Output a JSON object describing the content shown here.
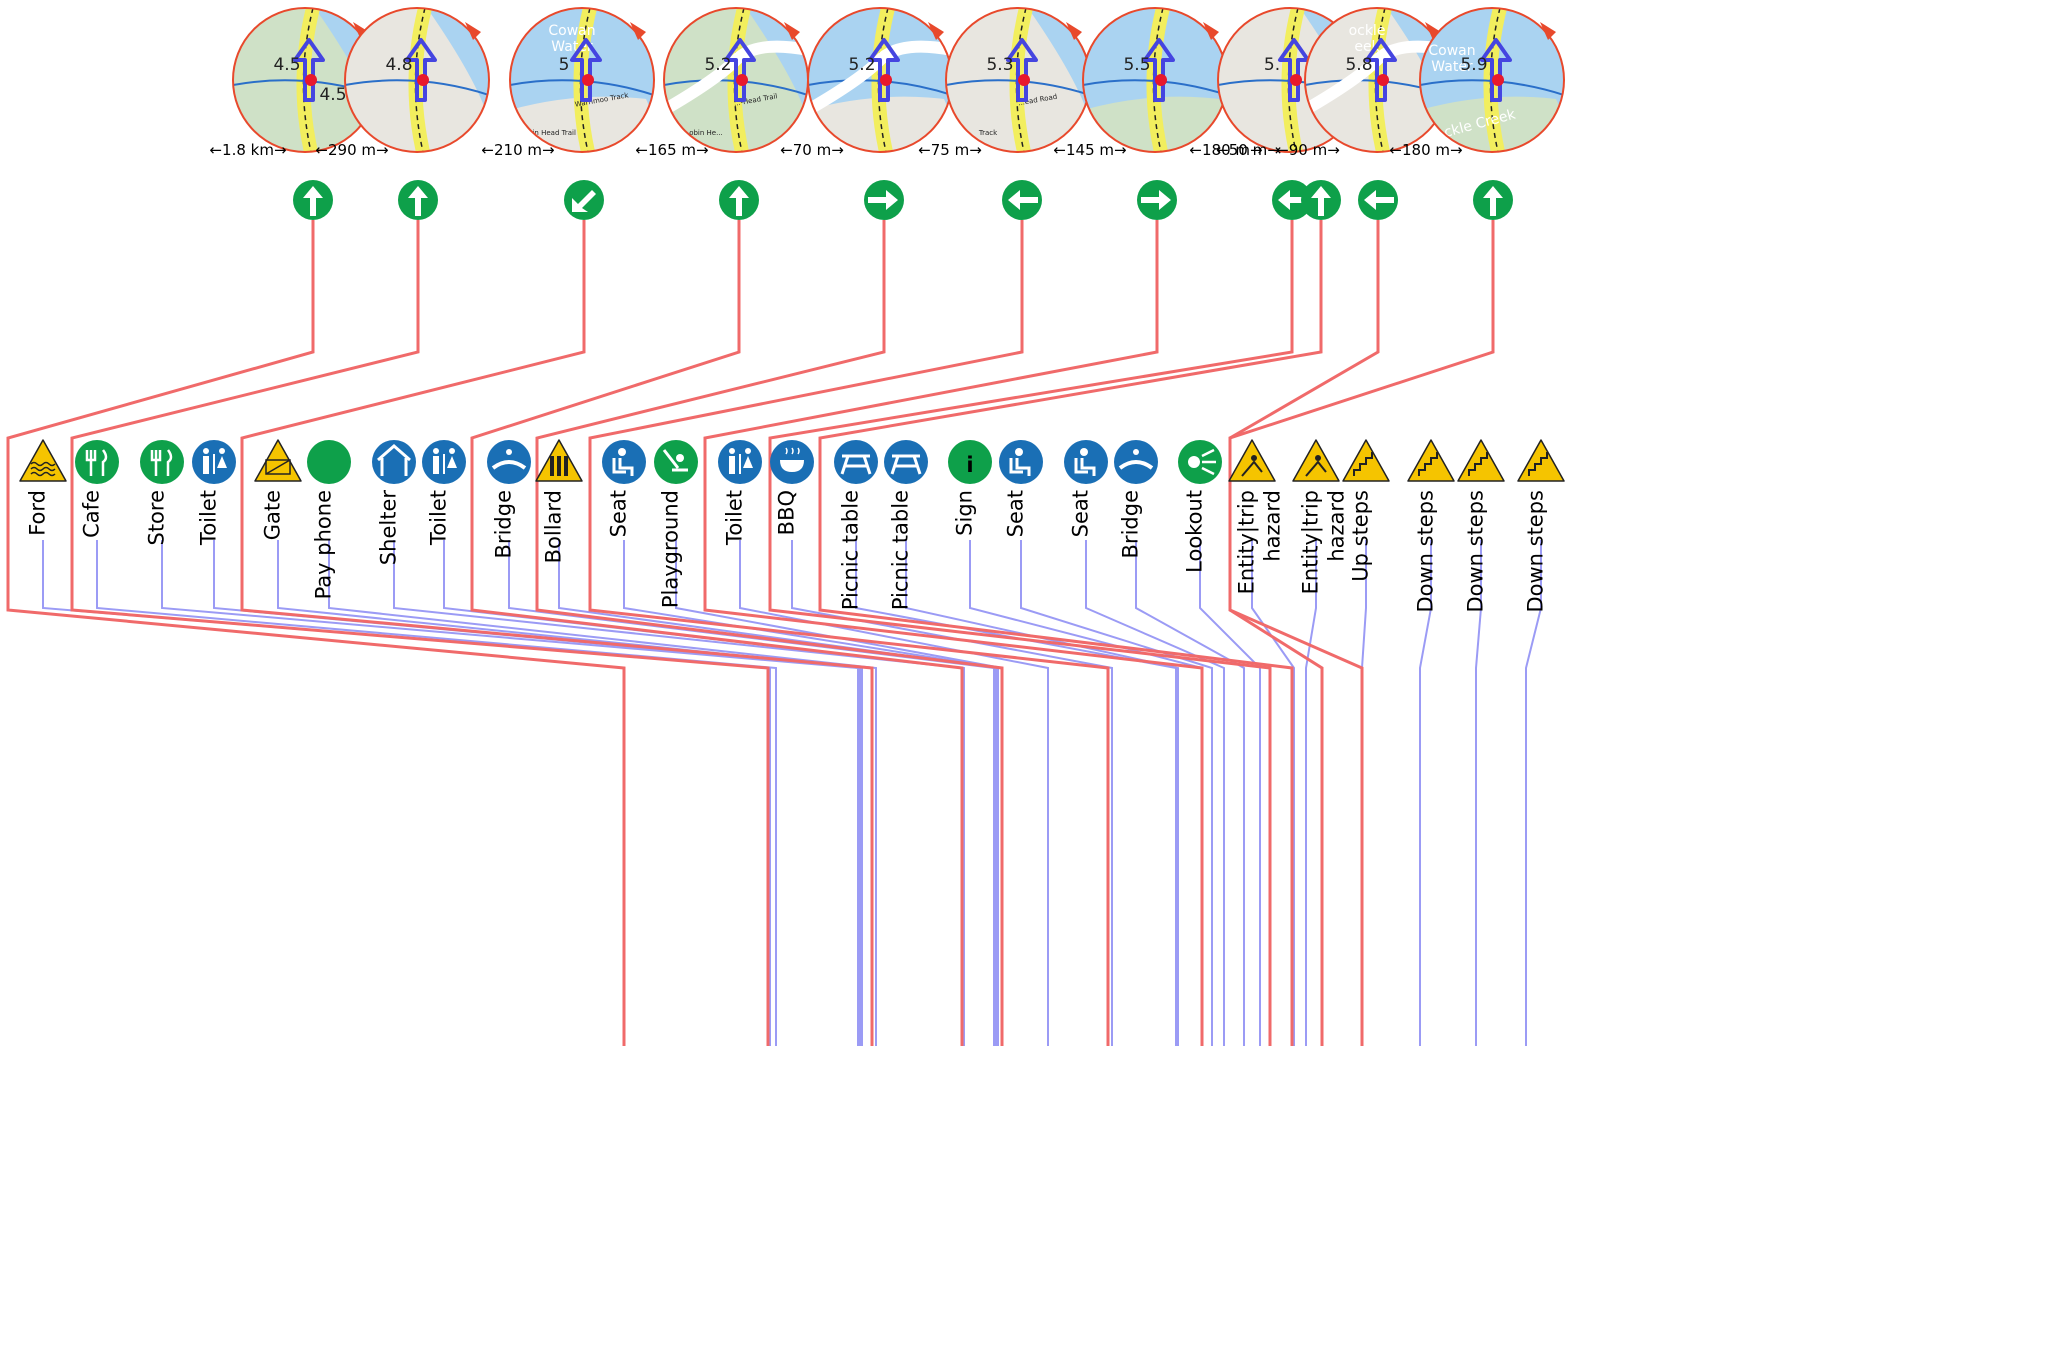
{
  "colors": {
    "route": "#f06a6a",
    "poi_line": "#9b9bf5",
    "green": "#0ea04a",
    "blue": "#1a6fb5",
    "warn": "#f5c400",
    "water": "#aad3f1",
    "land": "#cfe1c7",
    "path_yellow": "#f2ee5e",
    "arrow": "#4545e0",
    "marker": "#e8192c",
    "compass": "#e8492c"
  },
  "map_circles": [
    {
      "km": "4.5",
      "extra": "4.5",
      "type": "a"
    },
    {
      "km": "4.8",
      "type": "b"
    },
    {
      "km": "5",
      "place": "Cowan\nWater",
      "track": "Warrimoo Track",
      "track2": "bin Head Trail",
      "type": "c"
    },
    {
      "km": "5.2",
      "track": "...-Head Trail",
      "track2": "obin He...",
      "type": "d"
    },
    {
      "km": "5.2",
      "type": "e"
    },
    {
      "km": "5.3",
      "track": "...ead Road",
      "track2": "Track",
      "type": "f"
    },
    {
      "km": "5.5",
      "type": "g"
    },
    {
      "km": "5.",
      "type": "h"
    },
    {
      "km": "5.8",
      "place": "ockle\neek",
      "type": "i"
    },
    {
      "km": "5.9",
      "place": "Cowan\nWater",
      "place2": "Cockle Creek",
      "type": "j"
    }
  ],
  "distances": [
    "←1.8 km→",
    "←290 m→",
    "←210 m→",
    "←165 m→",
    "←70 m→",
    "←75 m→",
    "←145 m→",
    "←180 m→",
    "←50 m→",
    "←90 m→",
    "←180 m→"
  ],
  "turn_icons": [
    {
      "icon": "straight-arrow-icon"
    },
    {
      "icon": "straight-arrow-icon"
    },
    {
      "icon": "sharp-left-arrow-icon"
    },
    {
      "icon": "straight-arrow-icon"
    },
    {
      "icon": "right-arrow-icon"
    },
    {
      "icon": "left-arrow-icon"
    },
    {
      "icon": "right-arrow-icon"
    },
    {
      "icon": "left-arrow-icon"
    },
    {
      "icon": "straight-arrow-icon"
    },
    {
      "icon": "left-arrow-icon"
    },
    {
      "icon": "straight-arrow-icon"
    }
  ],
  "pois": [
    {
      "label": "Ford",
      "icon": "ford-warning-icon"
    },
    {
      "label": "Cafe",
      "icon": "cutlery-icon"
    },
    {
      "label": "Store",
      "icon": "cutlery-icon"
    },
    {
      "label": "Toilet",
      "icon": "toilet-icon"
    },
    {
      "label": "Gate",
      "icon": "gate-warning-icon"
    },
    {
      "label": "Pay phone",
      "icon": "green-circle-icon"
    },
    {
      "label": "Shelter",
      "icon": "shelter-icon"
    },
    {
      "label": "Toilet",
      "icon": "toilet-icon"
    },
    {
      "label": "Bridge",
      "icon": "bridge-icon"
    },
    {
      "label": "Bollard",
      "icon": "bollard-warning-icon"
    },
    {
      "label": "Seat",
      "icon": "seat-icon"
    },
    {
      "label": "Playground",
      "icon": "playground-icon"
    },
    {
      "label": "Toilet",
      "icon": "toilet-icon"
    },
    {
      "label": "BBQ",
      "icon": "bbq-icon"
    },
    {
      "label": "Picnic table",
      "icon": "picnic-table-icon"
    },
    {
      "label": "Picnic table",
      "icon": "picnic-table-icon"
    },
    {
      "label": "Sign",
      "icon": "info-icon"
    },
    {
      "label": "Seat",
      "icon": "seat-icon"
    },
    {
      "label": "Seat",
      "icon": "seat-icon"
    },
    {
      "label": "Bridge",
      "icon": "bridge-icon"
    },
    {
      "label": "Lookout",
      "icon": "lookout-icon"
    },
    {
      "label": "Entity|trip\nhazard",
      "icon": "trip-hazard-warning-icon"
    },
    {
      "label": "Entity|trip\nhazard",
      "icon": "trip-hazard-warning-icon"
    },
    {
      "label": "Up steps",
      "icon": "steps-warning-icon"
    },
    {
      "label": "Down steps",
      "icon": "steps-warning-icon"
    },
    {
      "label": "Down steps",
      "icon": "steps-warning-icon"
    },
    {
      "label": "Down steps",
      "icon": "steps-warning-icon"
    }
  ]
}
